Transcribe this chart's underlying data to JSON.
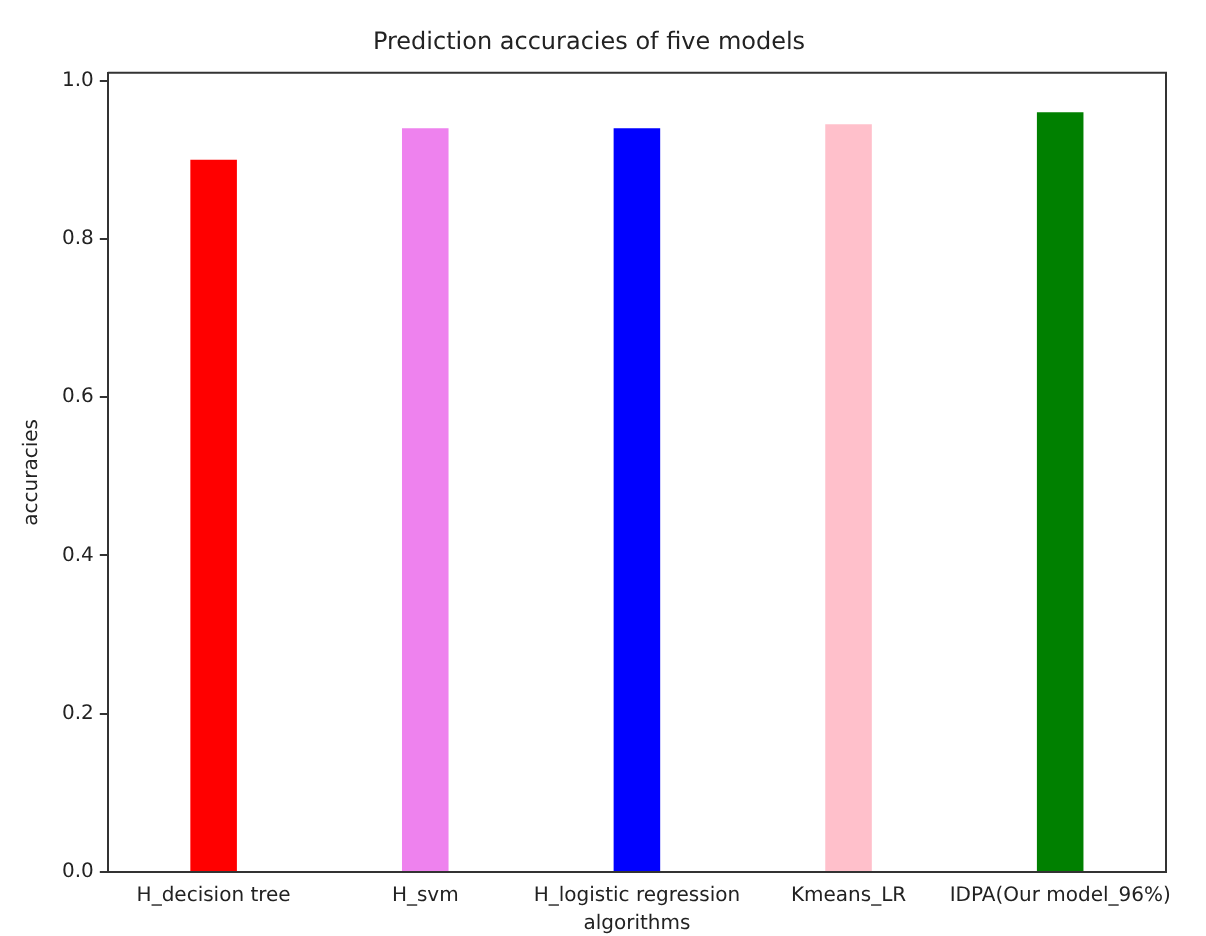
{
  "chart_data": {
    "type": "bar",
    "title": "Prediction accuracies of five models",
    "xlabel": "algorithms",
    "ylabel": "accuracies",
    "categories": [
      "H_decision tree",
      "H_svm",
      "H_logistic regression",
      "Kmeans_LR",
      "IDPA(Our model_96%)"
    ],
    "values": [
      0.9,
      0.94,
      0.94,
      0.945,
      0.96
    ],
    "colors": [
      "#ff0000",
      "#ee82ee",
      "#0000ff",
      "#ffc0cb",
      "#008000"
    ],
    "ylim": [
      0,
      1.01
    ],
    "yticks": [
      {
        "value": 0,
        "label": "0.0"
      },
      {
        "value": 0.2,
        "label": "0.2"
      },
      {
        "value": 0.4,
        "label": "0.4"
      },
      {
        "value": 0.6,
        "label": "0.6"
      },
      {
        "value": 0.8,
        "label": "0.8"
      },
      {
        "value": 1.0,
        "label": "1.0"
      }
    ],
    "grid": false,
    "legend": false
  }
}
